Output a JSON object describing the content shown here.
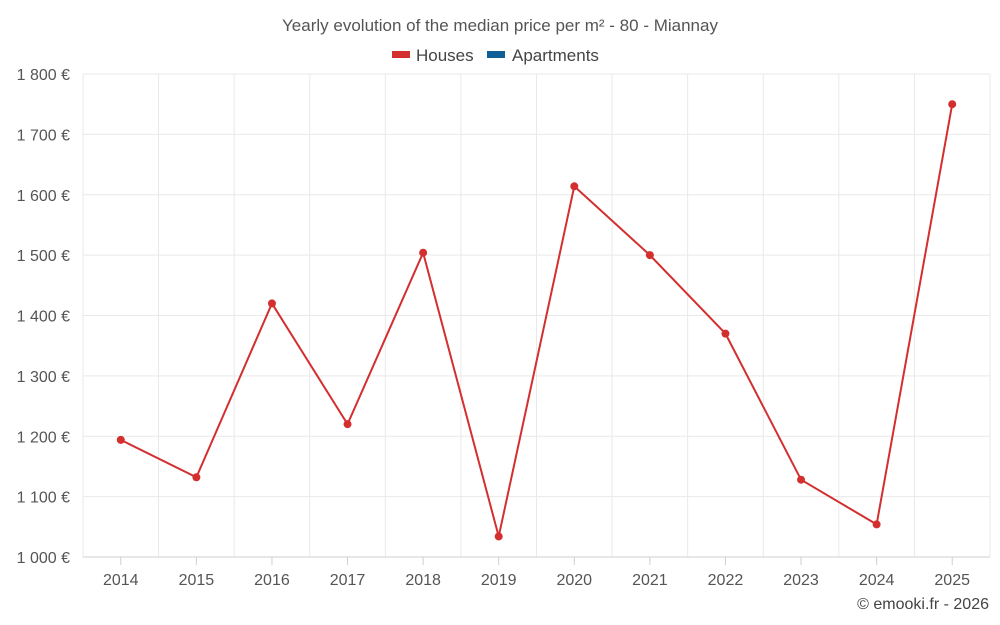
{
  "chart_data": {
    "type": "line",
    "title": "Yearly evolution of the median price per m² - 80 - Miannay",
    "credit": "© emooki.fr - 2026",
    "legend": [
      {
        "name": "Houses",
        "color": "#d32f2f"
      },
      {
        "name": "Apartments",
        "color": "#0d5f96"
      }
    ],
    "legend_position": "top-center",
    "grid": true,
    "x": [
      "2014",
      "2015",
      "2016",
      "2017",
      "2018",
      "2019",
      "2020",
      "2021",
      "2022",
      "2023",
      "2024",
      "2025"
    ],
    "ylim": [
      1000,
      1800
    ],
    "yticks": [
      1000,
      1100,
      1200,
      1300,
      1400,
      1500,
      1600,
      1700,
      1800
    ],
    "ytick_labels": [
      "1 000 €",
      "1 100 €",
      "1 200 €",
      "1 300 €",
      "1 400 €",
      "1 500 €",
      "1 600 €",
      "1 700 €",
      "1 800 €"
    ],
    "series": [
      {
        "name": "Houses",
        "color": "#d32f2f",
        "values": [
          1194,
          1132,
          1420,
          1220,
          1504,
          1034,
          1614,
          1500,
          1370,
          1128,
          1054,
          1750
        ]
      }
    ]
  }
}
